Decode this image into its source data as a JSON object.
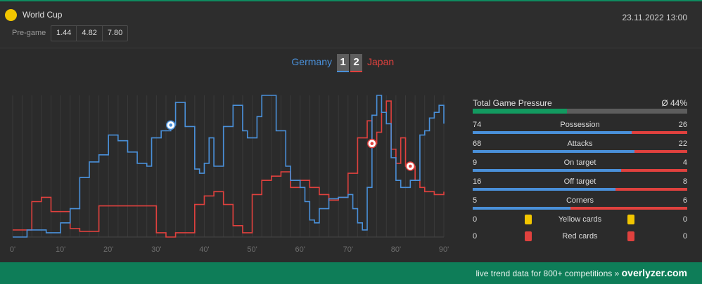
{
  "header": {
    "competition": "World Cup",
    "date": "23.11.2022 13:00",
    "pregame_label": "Pre-game",
    "odds": [
      "1.44",
      "4.82",
      "7.80"
    ]
  },
  "match": {
    "home_team": "Germany",
    "away_team": "Japan",
    "home_score": "1",
    "away_score": "2",
    "home_color": "#4a90d9",
    "away_color": "#e0413e"
  },
  "stats": {
    "pressure_label": "Total Game Pressure",
    "pressure_value": "Ø 44%",
    "pressure_fraction": 0.44,
    "rows": [
      {
        "home": "74",
        "name": "Possession",
        "away": "26"
      },
      {
        "home": "68",
        "name": "Attacks",
        "away": "22"
      },
      {
        "home": "9",
        "name": "On target",
        "away": "4"
      },
      {
        "home": "16",
        "name": "Off target",
        "away": "8"
      },
      {
        "home": "5",
        "name": "Corners",
        "away": "6"
      }
    ],
    "cards": [
      {
        "home": "0",
        "name": "Yellow cards",
        "away": "0",
        "color": "#f2c600"
      },
      {
        "home": "0",
        "name": "Red cards",
        "away": "0",
        "color": "#e0413e"
      }
    ]
  },
  "chart_data": {
    "type": "line",
    "x_ticks": [
      "0'",
      "10'",
      "20'",
      "30'",
      "40'",
      "50'",
      "60'",
      "70'",
      "80'",
      "90'"
    ],
    "xlim": [
      0,
      90
    ],
    "ylim": [
      0,
      100
    ],
    "grid": true,
    "series": [
      {
        "name": "Germany",
        "color": "#4a90d9",
        "points": [
          [
            0,
            0
          ],
          [
            2,
            0
          ],
          [
            3,
            5
          ],
          [
            5,
            5
          ],
          [
            7,
            3
          ],
          [
            10,
            10
          ],
          [
            12,
            20
          ],
          [
            14,
            42
          ],
          [
            16,
            53
          ],
          [
            18,
            58
          ],
          [
            20,
            72
          ],
          [
            22,
            68
          ],
          [
            24,
            60
          ],
          [
            26,
            52
          ],
          [
            28,
            50
          ],
          [
            29,
            70
          ],
          [
            31,
            75
          ],
          [
            33,
            79
          ],
          [
            34,
            95
          ],
          [
            36,
            78
          ],
          [
            38,
            48
          ],
          [
            39,
            45
          ],
          [
            40,
            52
          ],
          [
            41,
            70
          ],
          [
            42,
            50
          ],
          [
            44,
            78
          ],
          [
            46,
            93
          ],
          [
            48,
            75
          ],
          [
            49,
            70
          ],
          [
            51,
            85
          ],
          [
            52,
            100
          ],
          [
            53,
            100
          ],
          [
            55,
            75
          ],
          [
            57,
            50
          ],
          [
            58,
            40
          ],
          [
            60,
            35
          ],
          [
            61,
            25
          ],
          [
            62,
            12
          ],
          [
            63,
            10
          ],
          [
            64,
            20
          ],
          [
            66,
            27
          ],
          [
            68,
            28
          ],
          [
            70,
            30
          ],
          [
            71,
            20
          ],
          [
            72,
            10
          ],
          [
            73,
            5
          ],
          [
            74,
            35
          ],
          [
            75,
            86
          ],
          [
            76,
            100
          ],
          [
            77,
            88
          ],
          [
            78,
            80
          ],
          [
            79,
            56
          ],
          [
            80,
            40
          ],
          [
            81,
            35
          ],
          [
            83,
            40
          ],
          [
            85,
            72
          ],
          [
            86,
            75
          ],
          [
            87,
            84
          ],
          [
            88,
            88
          ],
          [
            89,
            93
          ],
          [
            90,
            80
          ]
        ]
      },
      {
        "name": "Japan",
        "color": "#e0413e",
        "points": [
          [
            0,
            5
          ],
          [
            4,
            25
          ],
          [
            6,
            28
          ],
          [
            8,
            18
          ],
          [
            10,
            18
          ],
          [
            12,
            6
          ],
          [
            14,
            4
          ],
          [
            16,
            4
          ],
          [
            18,
            22
          ],
          [
            20,
            22
          ],
          [
            22,
            22
          ],
          [
            24,
            22
          ],
          [
            26,
            22
          ],
          [
            28,
            22
          ],
          [
            30,
            3
          ],
          [
            32,
            0
          ],
          [
            34,
            3
          ],
          [
            36,
            3
          ],
          [
            38,
            23
          ],
          [
            40,
            29
          ],
          [
            42,
            32
          ],
          [
            44,
            23
          ],
          [
            46,
            8
          ],
          [
            48,
            3
          ],
          [
            50,
            30
          ],
          [
            52,
            40
          ],
          [
            54,
            43
          ],
          [
            56,
            46
          ],
          [
            58,
            35
          ],
          [
            60,
            40
          ],
          [
            62,
            35
          ],
          [
            64,
            30
          ],
          [
            66,
            26
          ],
          [
            68,
            28
          ],
          [
            70,
            45
          ],
          [
            72,
            70
          ],
          [
            74,
            82
          ],
          [
            75,
            66
          ],
          [
            76,
            74
          ],
          [
            77,
            88
          ],
          [
            78,
            96
          ],
          [
            79,
            62
          ],
          [
            80,
            52
          ],
          [
            81,
            70
          ],
          [
            82,
            50
          ],
          [
            84,
            40
          ],
          [
            85,
            35
          ],
          [
            86,
            32
          ],
          [
            88,
            30
          ],
          [
            90,
            32
          ]
        ]
      }
    ],
    "goals": [
      {
        "team": "Germany",
        "minute": 33
      },
      {
        "team": "Japan",
        "minute": 75
      },
      {
        "team": "Japan",
        "minute": 83
      }
    ]
  },
  "footer": {
    "tagline": "live trend data for 800+ competitions »",
    "brand": "overlyzer.com"
  }
}
